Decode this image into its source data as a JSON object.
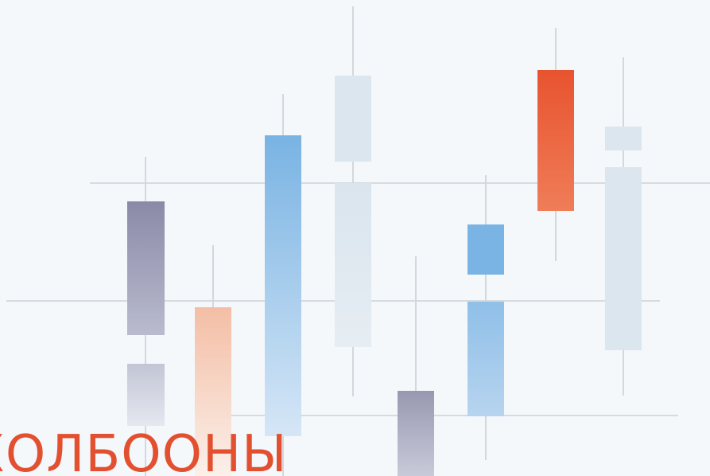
{
  "headline": "ХОЛБООНЫ"
}
